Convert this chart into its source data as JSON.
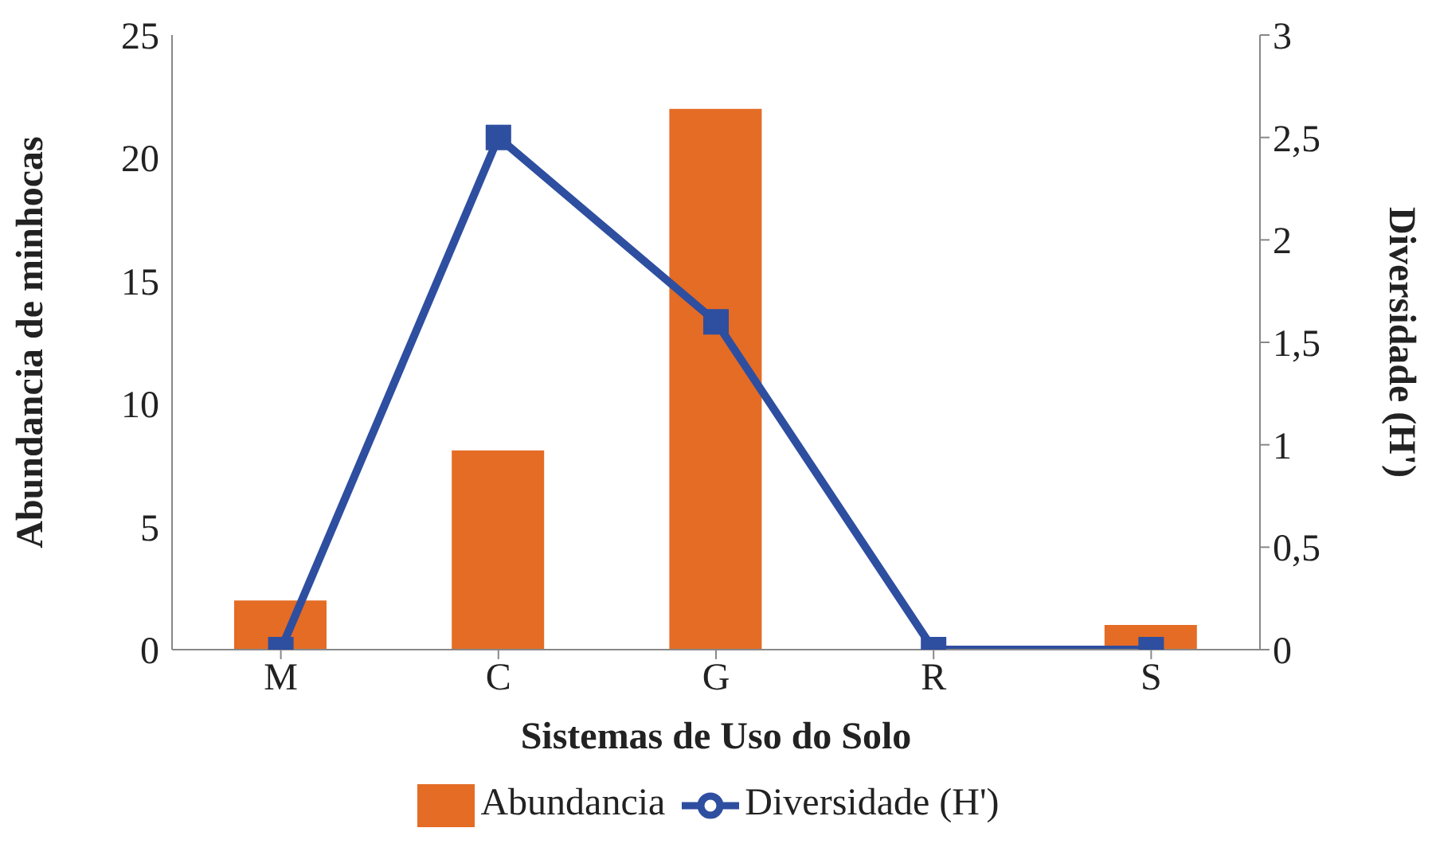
{
  "chart_data": {
    "type": "bar",
    "xlabel": "Sistemas de Uso do Solo",
    "ylabel": "Abundancia de minhocas",
    "y2label": "Diversidade (H')",
    "categories": [
      "M",
      "C",
      "G",
      "R",
      "S"
    ],
    "series": [
      {
        "name": "Abundancia",
        "color": "#e46c25",
        "values": [
          2,
          8.1,
          22,
          0,
          1
        ]
      },
      {
        "name": "Diversidade (H')",
        "type": "line",
        "axis": "y2",
        "color": "#2e4ea0",
        "values": [
          0,
          2.5,
          1.6,
          0,
          0
        ]
      }
    ],
    "ylim": [
      0,
      25
    ],
    "yticks": [
      0,
      5,
      10,
      15,
      20,
      25
    ],
    "y2lim": [
      0,
      3
    ],
    "y2ticks": [
      0,
      {
        "value": 0.5,
        "label": "0,5"
      },
      1,
      {
        "value": 1.5,
        "label": "1,5"
      },
      2,
      {
        "value": 2.5,
        "label": "2,5"
      },
      3
    ],
    "grid": false,
    "legend": "bottom",
    "marker": "square",
    "line_style": "solid"
  }
}
